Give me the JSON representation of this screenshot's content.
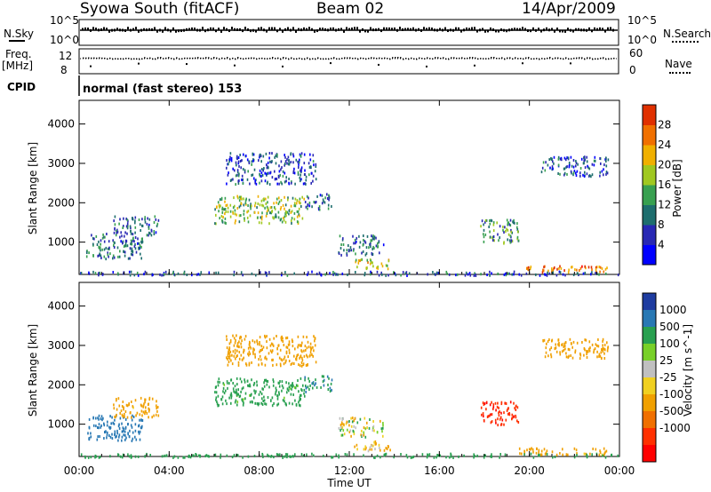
{
  "header": {
    "station": "Syowa South (fitACF)",
    "beam": "Beam 02",
    "date": "14/Apr/2009"
  },
  "panels": {
    "nsky_label": "N.Sky",
    "nsky_tick_top": "10^5",
    "nsky_tick_bottom": "10^0",
    "nsearch_label": "N.Search",
    "nsearch_tick_top": "10^5",
    "nsearch_tick_bottom": "10^0",
    "freq_label_1": "Freq.",
    "freq_label_2": "[MHz]",
    "freq_tick_top": "12",
    "freq_tick_bottom": "8",
    "nave_label": "Nave",
    "nave_tick_top": "60",
    "nave_tick_bottom": "0",
    "cpid_label": "CPID",
    "cpid_text": "normal (fast stereo) 153"
  },
  "colors": {
    "power_scale": [
      "#0000ff",
      "#2828b4",
      "#1e6e6e",
      "#38a050",
      "#a0c820",
      "#f0b000",
      "#f07000",
      "#e03000",
      "#ff0000"
    ],
    "velocity_scale": [
      "#1e3ca0",
      "#2878b4",
      "#28a050",
      "#78d028",
      "#c0c0c0",
      "#f0d020",
      "#f0a000",
      "#f07000",
      "#ff3000",
      "#ff0000"
    ]
  },
  "chart_data": [
    {
      "type": "heatmap",
      "name": "power",
      "xlabel": "Time UT",
      "ylabel": "Slant Range [km]",
      "x_ticks": [
        "00:00",
        "04:00",
        "08:00",
        "12:00",
        "16:00",
        "20:00",
        "00:00"
      ],
      "xlim_hours": [
        0,
        24
      ],
      "ylim": [
        180,
        4600
      ],
      "y_ticks": [
        1000,
        2000,
        3000,
        4000
      ],
      "colorbar_label": "Power [dB]",
      "colorbar_ticks": [
        4,
        8,
        12,
        16,
        20,
        24,
        28
      ],
      "colorbar_range": [
        0,
        30
      ],
      "regions": [
        {
          "t": [
            0.3,
            2.8
          ],
          "r": [
            600,
            1250
          ],
          "v": 8
        },
        {
          "t": [
            1.5,
            3.5
          ],
          "r": [
            1200,
            1700
          ],
          "v": 8
        },
        {
          "t": [
            6.0,
            10.0
          ],
          "r": [
            1500,
            2200
          ],
          "v": 14
        },
        {
          "t": [
            6.5,
            10.5
          ],
          "r": [
            2500,
            3300
          ],
          "v": 6
        },
        {
          "t": [
            10.0,
            11.2
          ],
          "r": [
            1850,
            2250
          ],
          "v": 8
        },
        {
          "t": [
            11.5,
            13.5
          ],
          "r": [
            700,
            1200
          ],
          "v": 8
        },
        {
          "t": [
            12.2,
            13.8
          ],
          "r": [
            350,
            600
          ],
          "v": 16
        },
        {
          "t": [
            17.8,
            19.5
          ],
          "r": [
            1000,
            1600
          ],
          "v": 10
        },
        {
          "t": [
            19.5,
            23.5
          ],
          "r": [
            250,
            420
          ],
          "v": 22
        },
        {
          "t": [
            20.5,
            23.5
          ],
          "r": [
            2700,
            3200
          ],
          "v": 6
        },
        {
          "t": [
            0.0,
            24.0
          ],
          "r": [
            180,
            280
          ],
          "v": 6
        }
      ]
    },
    {
      "type": "heatmap",
      "name": "velocity",
      "xlabel": "Time UT",
      "ylabel": "Slant Range [km]",
      "x_ticks": [
        "00:00",
        "04:00",
        "08:00",
        "12:00",
        "16:00",
        "20:00",
        "00:00"
      ],
      "xlim_hours": [
        0,
        24
      ],
      "ylim": [
        180,
        4600
      ],
      "y_ticks": [
        1000,
        2000,
        3000,
        4000
      ],
      "colorbar_label": "Velocity [m s^-1]",
      "colorbar_ticks": [
        "1000",
        "500",
        "100",
        "25",
        "-25",
        "-100",
        "-500",
        "-1000"
      ],
      "colorbar_range": [
        -1000,
        1000
      ],
      "regions": [
        {
          "t": [
            0.3,
            2.8
          ],
          "r": [
            600,
            1250
          ],
          "v": 400
        },
        {
          "t": [
            1.5,
            3.5
          ],
          "r": [
            1200,
            1700
          ],
          "v": -150
        },
        {
          "t": [
            6.0,
            10.0
          ],
          "r": [
            1500,
            2200
          ],
          "v": 150
        },
        {
          "t": [
            6.5,
            10.5
          ],
          "r": [
            2500,
            3300
          ],
          "v": -200
        },
        {
          "t": [
            10.0,
            11.2
          ],
          "r": [
            1850,
            2250
          ],
          "v": 300
        },
        {
          "t": [
            11.5,
            13.5
          ],
          "r": [
            700,
            1200
          ],
          "v": 0
        },
        {
          "t": [
            12.2,
            13.8
          ],
          "r": [
            350,
            600
          ],
          "v": -80
        },
        {
          "t": [
            17.8,
            19.5
          ],
          "r": [
            1000,
            1600
          ],
          "v": -700
        },
        {
          "t": [
            19.5,
            23.5
          ],
          "r": [
            250,
            420
          ],
          "v": -150
        },
        {
          "t": [
            20.5,
            23.5
          ],
          "r": [
            2700,
            3200
          ],
          "v": -200
        },
        {
          "t": [
            0.0,
            24.0
          ],
          "r": [
            180,
            280
          ],
          "v": 200
        }
      ]
    }
  ]
}
